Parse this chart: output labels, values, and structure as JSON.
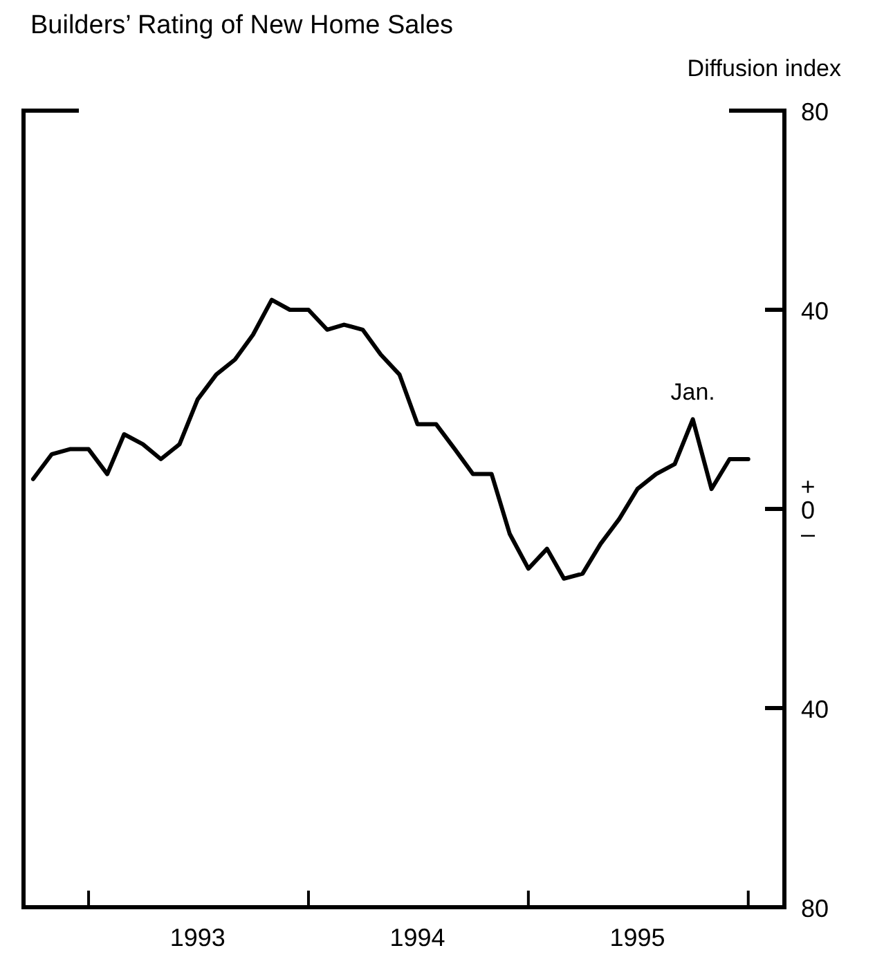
{
  "chart_data": {
    "type": "line",
    "title": "Builders’ Rating of New Home Sales",
    "ylabel": "Diffusion index",
    "x": [
      "1992-10",
      "1992-11",
      "1992-12",
      "1993-01",
      "1993-02",
      "1993-03",
      "1993-04",
      "1993-05",
      "1993-06",
      "1993-07",
      "1993-08",
      "1993-09",
      "1993-10",
      "1993-11",
      "1993-12",
      "1994-01",
      "1994-02",
      "1994-03",
      "1994-04",
      "1994-05",
      "1994-06",
      "1994-07",
      "1994-08",
      "1994-09",
      "1994-10",
      "1994-11",
      "1994-12",
      "1995-01",
      "1995-02",
      "1995-03",
      "1995-04",
      "1995-05",
      "1995-06",
      "1995-07",
      "1995-08",
      "1995-09",
      "1995-10",
      "1995-11",
      "1995-12",
      "1996-01"
    ],
    "series": [
      {
        "color": "#000000",
        "values": [
          6,
          11,
          12,
          12,
          7,
          15,
          13,
          10,
          13,
          22,
          27,
          30,
          35,
          42,
          40,
          40,
          36,
          37,
          36,
          31,
          27,
          17,
          17,
          12,
          7,
          7,
          -5,
          -12,
          -8,
          -14,
          -13,
          -7,
          -2,
          4,
          7,
          9,
          18,
          4,
          10,
          10
        ]
      }
    ],
    "xlim": [
      "1992-09-15",
      "1996-03-01"
    ],
    "xticks": [
      {
        "value": "1993-01",
        "label": null
      },
      {
        "value": "1993-07",
        "label": "1993"
      },
      {
        "value": "1994-01",
        "label": null
      },
      {
        "value": "1994-07",
        "label": "1994"
      },
      {
        "value": "1995-01",
        "label": null
      },
      {
        "value": "1995-07",
        "label": "1995"
      },
      {
        "value": "1996-01",
        "label": null
      }
    ],
    "ylim": [
      -80,
      80
    ],
    "yticks": [
      {
        "value": 80,
        "label": "80"
      },
      {
        "value": 40,
        "label": "40"
      },
      {
        "value": 0,
        "label": "0"
      },
      {
        "value": -40,
        "label": "40"
      },
      {
        "value": -80,
        "label": "80"
      }
    ],
    "annotations": [
      {
        "text": "Jan.",
        "x": "1995-10",
        "y": 18
      },
      "+",
      "–"
    ],
    "grid": false,
    "marker": "none",
    "line_style": "solid"
  }
}
